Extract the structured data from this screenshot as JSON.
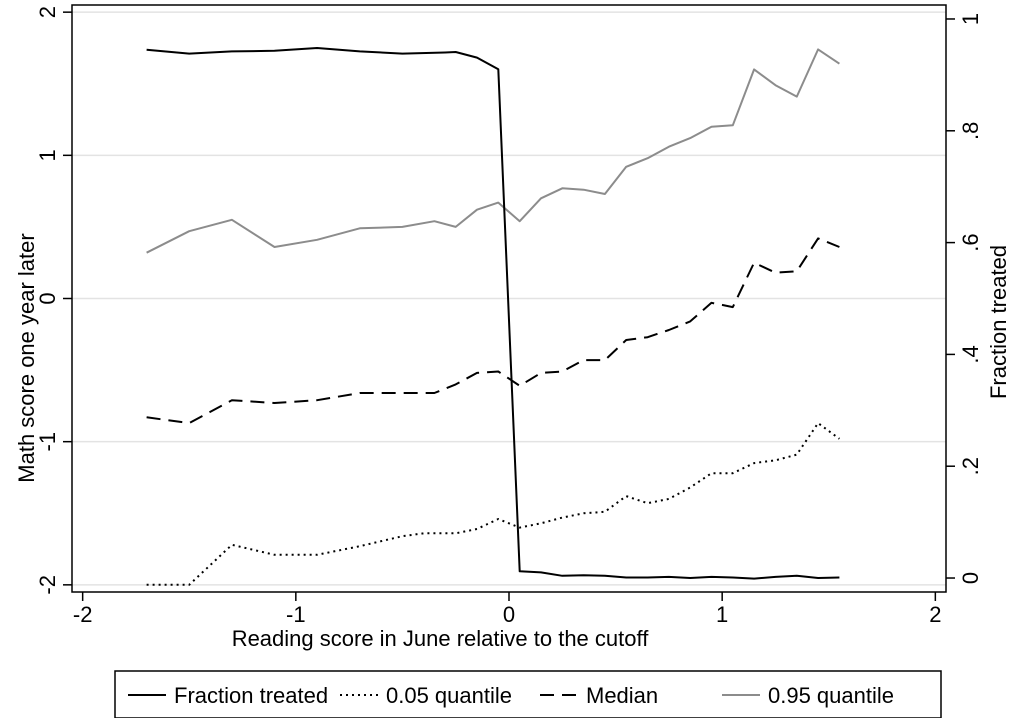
{
  "chart_data": {
    "type": "line",
    "title": "",
    "xlabel": "Reading score in June relative to the cutoff",
    "ylabel": "Math score one year later",
    "y2label": "Fraction treated",
    "xlim": [
      -2.05,
      2.05
    ],
    "ylim": [
      -2.05,
      2.05
    ],
    "y2lim": [
      -0.025,
      1.025
    ],
    "xticks": [
      -2,
      -1,
      0,
      1,
      2
    ],
    "xtick_labels": [
      "-2",
      "-1",
      "0",
      "1",
      "2"
    ],
    "yticks": [
      -2,
      -1,
      0,
      1,
      2
    ],
    "ytick_labels": [
      "-2",
      "-1",
      "0",
      "1",
      "2"
    ],
    "y2ticks": [
      0,
      0.2,
      0.4,
      0.6,
      0.8,
      1
    ],
    "y2tick_labels": [
      "0",
      ".2",
      ".4",
      ".6",
      ".8",
      "1"
    ],
    "grid": "horizontal",
    "legend_position": "bottom",
    "series": [
      {
        "name": "Fraction treated",
        "axis": "right",
        "color": "#000000",
        "style": "solid",
        "x": [
          -1.7,
          -1.5,
          -1.3,
          -1.1,
          -0.9,
          -0.7,
          -0.5,
          -0.3,
          -0.25,
          -0.15,
          -0.05,
          0.05,
          0.15,
          0.25,
          0.35,
          0.45,
          0.55,
          0.65,
          0.75,
          0.85,
          0.95,
          1.05,
          1.15,
          1.25,
          1.35,
          1.45,
          1.55
        ],
        "values": [
          0.945,
          0.938,
          0.942,
          0.943,
          0.948,
          0.942,
          0.938,
          0.94,
          0.941,
          0.931,
          0.91,
          0.012,
          0.01,
          0.004,
          0.005,
          0.004,
          0.001,
          0.001,
          0.002,
          0.0,
          0.002,
          0.001,
          -0.001,
          0.002,
          0.004,
          0.0,
          0.001
        ]
      },
      {
        "name": "0.05 quantile",
        "axis": "left",
        "color": "#000000",
        "style": "dotted",
        "x": [
          -1.7,
          -1.5,
          -1.3,
          -1.1,
          -0.9,
          -0.7,
          -0.5,
          -0.4,
          -0.3,
          -0.25,
          -0.15,
          -0.05,
          0.05,
          0.15,
          0.25,
          0.35,
          0.45,
          0.55,
          0.65,
          0.75,
          0.85,
          0.95,
          1.05,
          1.15,
          1.25,
          1.35,
          1.45,
          1.55
        ],
        "values": [
          -2.0,
          -2.0,
          -1.72,
          -1.79,
          -1.79,
          -1.73,
          -1.66,
          -1.64,
          -1.64,
          -1.64,
          -1.61,
          -1.54,
          -1.6,
          -1.57,
          -1.53,
          -1.5,
          -1.49,
          -1.38,
          -1.43,
          -1.4,
          -1.32,
          -1.22,
          -1.22,
          -1.15,
          -1.13,
          -1.09,
          -0.87,
          -0.98
        ]
      },
      {
        "name": "Median",
        "axis": "left",
        "color": "#000000",
        "style": "dashed",
        "x": [
          -1.7,
          -1.5,
          -1.3,
          -1.1,
          -0.9,
          -0.7,
          -0.5,
          -0.35,
          -0.25,
          -0.15,
          -0.05,
          0.05,
          0.15,
          0.25,
          0.35,
          0.45,
          0.55,
          0.65,
          0.75,
          0.85,
          0.95,
          1.05,
          1.15,
          1.25,
          1.35,
          1.45,
          1.55
        ],
        "values": [
          -0.83,
          -0.87,
          -0.71,
          -0.73,
          -0.71,
          -0.66,
          -0.66,
          -0.66,
          -0.6,
          -0.52,
          -0.51,
          -0.61,
          -0.52,
          -0.51,
          -0.43,
          -0.43,
          -0.29,
          -0.27,
          -0.22,
          -0.16,
          -0.03,
          -0.06,
          0.25,
          0.18,
          0.19,
          0.42,
          0.36
        ]
      },
      {
        "name": "0.95 quantile",
        "axis": "left",
        "color": "#8c8c8c",
        "style": "solid",
        "x": [
          -1.7,
          -1.5,
          -1.3,
          -1.1,
          -0.9,
          -0.7,
          -0.5,
          -0.35,
          -0.25,
          -0.15,
          -0.05,
          0.05,
          0.15,
          0.25,
          0.35,
          0.45,
          0.55,
          0.65,
          0.75,
          0.85,
          0.95,
          1.05,
          1.15,
          1.25,
          1.35,
          1.45,
          1.55
        ],
        "values": [
          0.32,
          0.47,
          0.55,
          0.36,
          0.41,
          0.49,
          0.5,
          0.54,
          0.5,
          0.62,
          0.67,
          0.54,
          0.7,
          0.77,
          0.76,
          0.73,
          0.92,
          0.98,
          1.06,
          1.12,
          1.2,
          1.21,
          1.6,
          1.49,
          1.41,
          1.74,
          1.64
        ]
      }
    ]
  }
}
